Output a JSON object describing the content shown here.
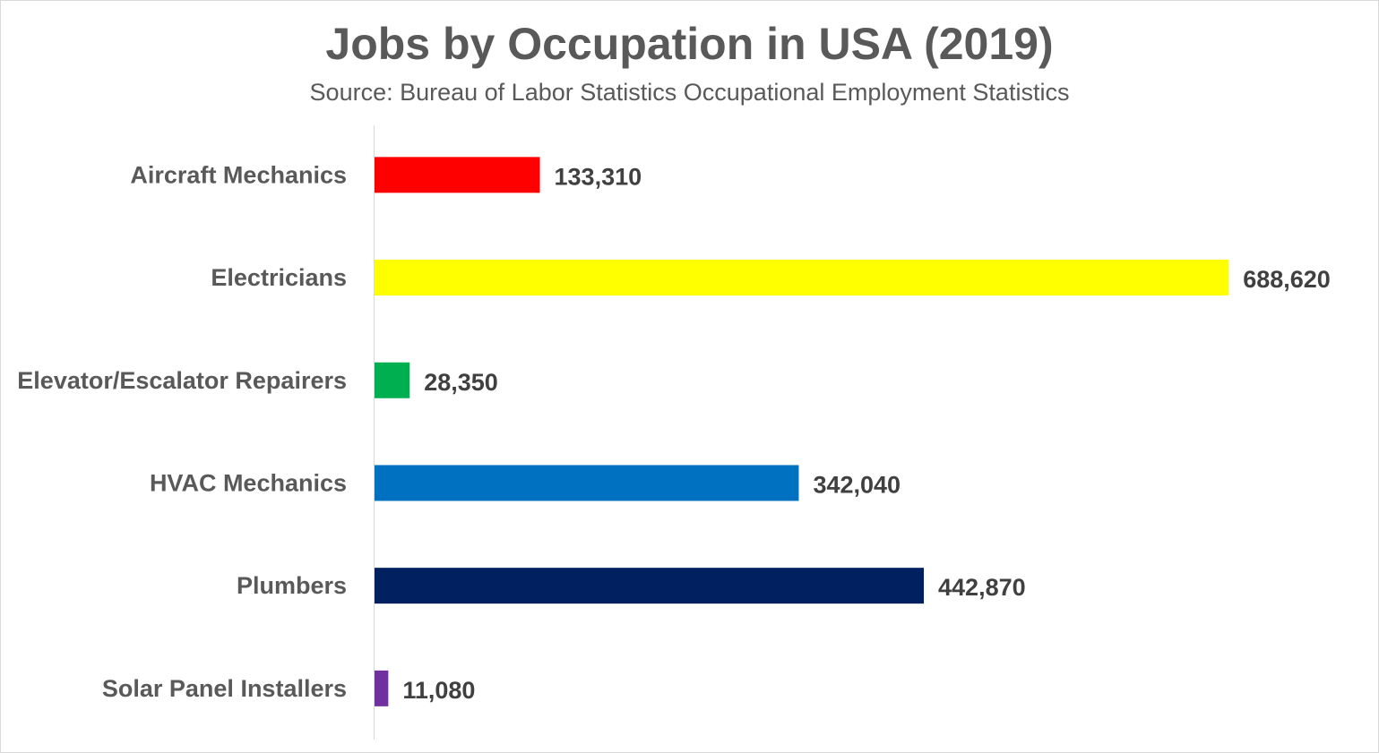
{
  "chart_data": {
    "type": "bar",
    "orientation": "horizontal",
    "title": "Jobs by Occupation in USA (2019)",
    "subtitle": "Source: Bureau of Labor Statistics Occupational Employment Statistics",
    "categories": [
      "Aircraft Mechanics",
      "Electricians",
      "Elevator/Escalator Repairers",
      "HVAC Mechanics",
      "Plumbers",
      "Solar Panel Installers"
    ],
    "values": [
      133310,
      688620,
      28350,
      342040,
      442870,
      11080
    ],
    "value_labels": [
      "133,310",
      "688,620",
      "28,350",
      "342,040",
      "442,870",
      "11,080"
    ],
    "colors": [
      "#ff0000",
      "#ffff00",
      "#00b050",
      "#0070c0",
      "#002060",
      "#7030a0"
    ],
    "xlim": [
      0,
      760000
    ],
    "grid": false,
    "legend": "none",
    "data_labels": true
  }
}
